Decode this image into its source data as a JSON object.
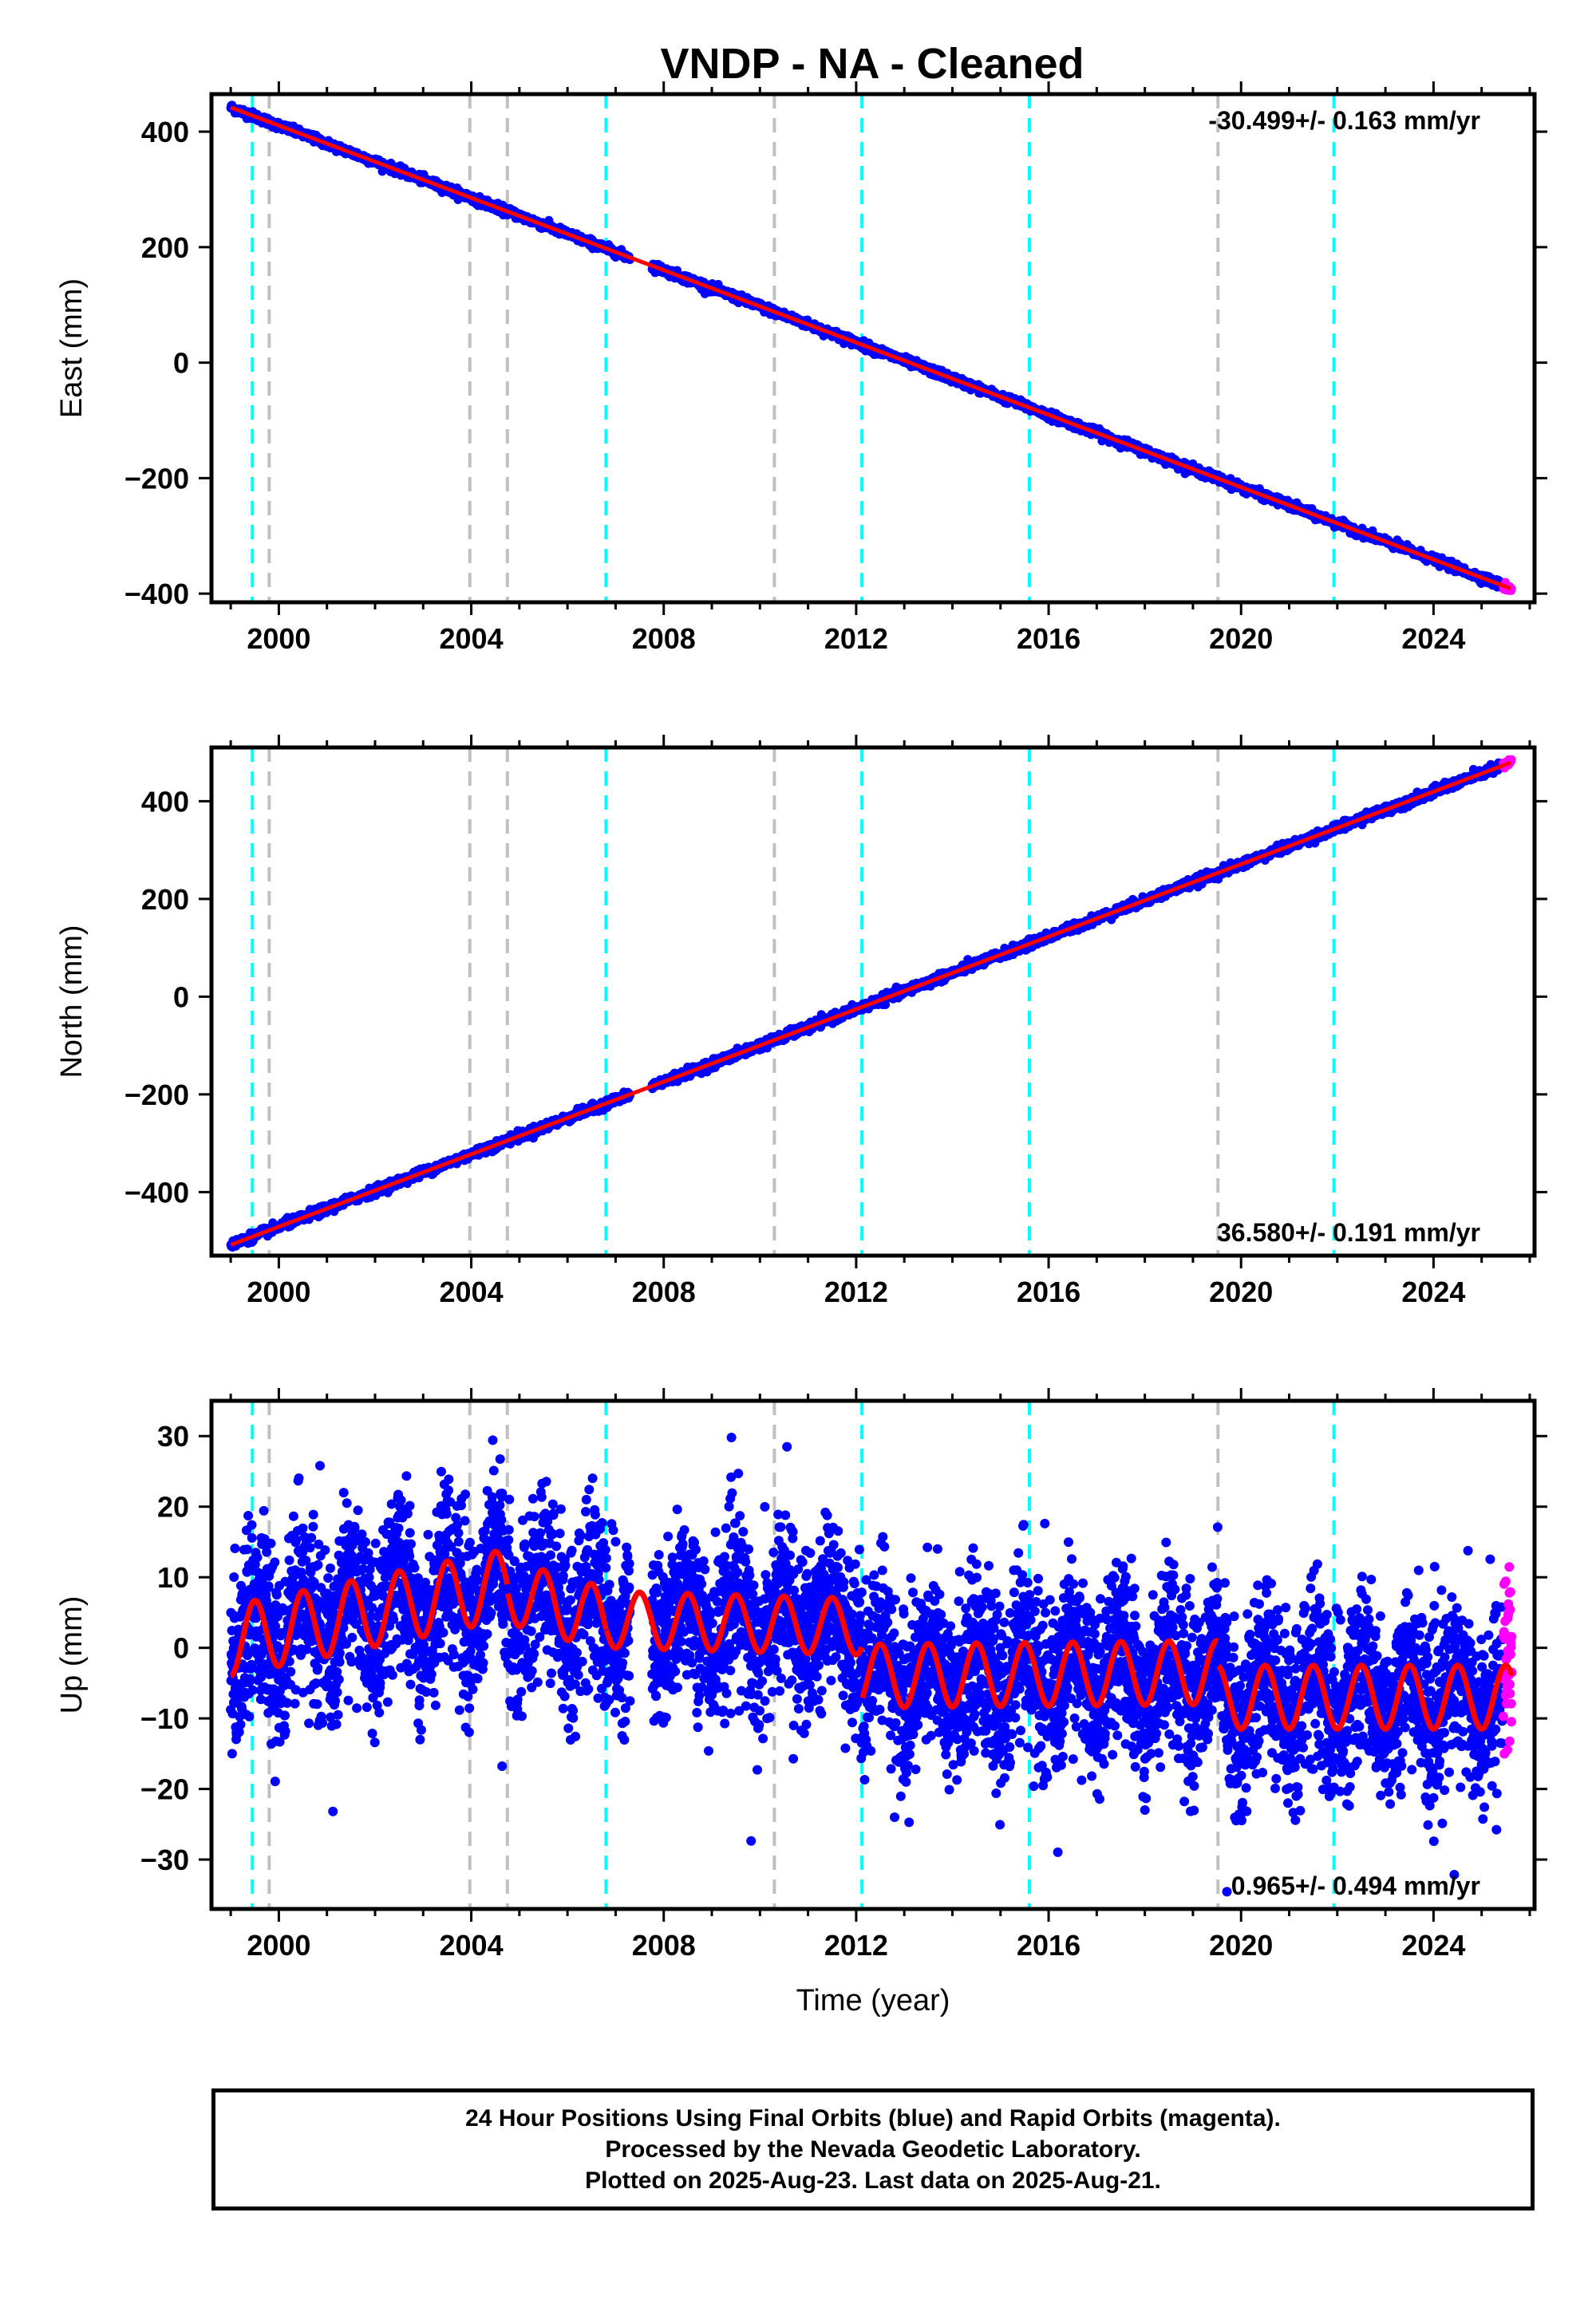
{
  "title": "VNDP  - NA - Cleaned",
  "x_axis": {
    "label": "Time (year)",
    "range": [
      1998.6,
      2026.1
    ],
    "ticks": [
      2000,
      2004,
      2008,
      2012,
      2016,
      2020,
      2024
    ],
    "tick_labels": [
      "2000",
      "2004",
      "2008",
      "2012",
      "2016",
      "2020",
      "2024"
    ],
    "minor_step": 1
  },
  "vertical_lines": {
    "cyan": [
      1999.45,
      2006.8,
      2012.12,
      2015.6,
      2021.93
    ],
    "gray": [
      1999.8,
      2003.97,
      2004.75,
      2010.3,
      2019.52
    ]
  },
  "colors": {
    "final_orbits": "#0000ff",
    "rapid_orbits": "#ff00ff",
    "model_fit": "#ff0000",
    "cyan_line": "#00ffff",
    "gray_line": "#c0c0c0"
  },
  "chart_data": [
    {
      "type": "scatter",
      "panel": "east",
      "ylabel": "East (mm)",
      "ylim": [
        -415,
        465
      ],
      "yticks": [
        -400,
        -200,
        0,
        200,
        400
      ],
      "ytick_labels": [
        "−400",
        "−200",
        "0",
        "200",
        "400"
      ],
      "rate_text": "-30.499+/- 0.163 mm/yr",
      "rate_position": "top-right",
      "start": {
        "x": 1999.0,
        "y": 442
      },
      "end": {
        "x": 2025.63,
        "y": -392
      },
      "rate": -30.499,
      "seasonal_amp": 0,
      "noise": 3.5,
      "data_gap": [
        2007.3,
        2007.75
      ]
    },
    {
      "type": "scatter",
      "panel": "north",
      "ylabel": "North (mm)",
      "ylim": [
        -530,
        510
      ],
      "yticks": [
        -400,
        -200,
        0,
        200,
        400
      ],
      "ytick_labels": [
        "−400",
        "−200",
        "0",
        "200",
        "400"
      ],
      "rate_text": "36.580+/- 0.191 mm/yr",
      "rate_position": "bottom-right",
      "start": {
        "x": 1999.0,
        "y": -508
      },
      "end": {
        "x": 2025.63,
        "y": 480
      },
      "rate": 36.58,
      "seasonal_amp": 0,
      "noise": 4.5,
      "data_gap": [
        2007.3,
        2007.75
      ]
    },
    {
      "type": "scatter",
      "panel": "up",
      "ylabel": "Up (mm)",
      "ylim": [
        -37,
        35
      ],
      "yticks": [
        -30,
        -20,
        -10,
        0,
        10,
        20,
        30
      ],
      "ytick_labels": [
        "−30",
        "−20",
        "−10",
        "0",
        "10",
        "20",
        "30"
      ],
      "rate_text": "0.965+/- 0.494 mm/yr",
      "rate_position": "bottom-right",
      "rate": 0.965,
      "model_segments": [
        {
          "from": 1999.0,
          "to": 2004.75,
          "level_start": 1,
          "level_end": 9,
          "amp": 5
        },
        {
          "from": 2004.75,
          "to": 2006.8,
          "level_start": 8,
          "level_end": 4,
          "amp": 4.5
        },
        {
          "from": 2006.8,
          "to": 2012.12,
          "level_start": 4,
          "level_end": 3,
          "amp": 4
        },
        {
          "from": 2012.12,
          "to": 2019.52,
          "level_start": -4,
          "level_end": -3.5,
          "amp": 4.5
        },
        {
          "from": 2019.52,
          "to": 2025.63,
          "level_start": -7,
          "level_end": -7,
          "amp": 4.5
        }
      ],
      "noise": 6,
      "data_gap": [
        2007.3,
        2007.75
      ]
    }
  ],
  "footer": {
    "line1": "24 Hour Positions Using Final Orbits (blue) and Rapid Orbits (magenta).",
    "line2": "Processed by the Nevada Geodetic Laboratory.",
    "line3": "Plotted on 2025-Aug-23. Last data on 2025-Aug-21."
  }
}
